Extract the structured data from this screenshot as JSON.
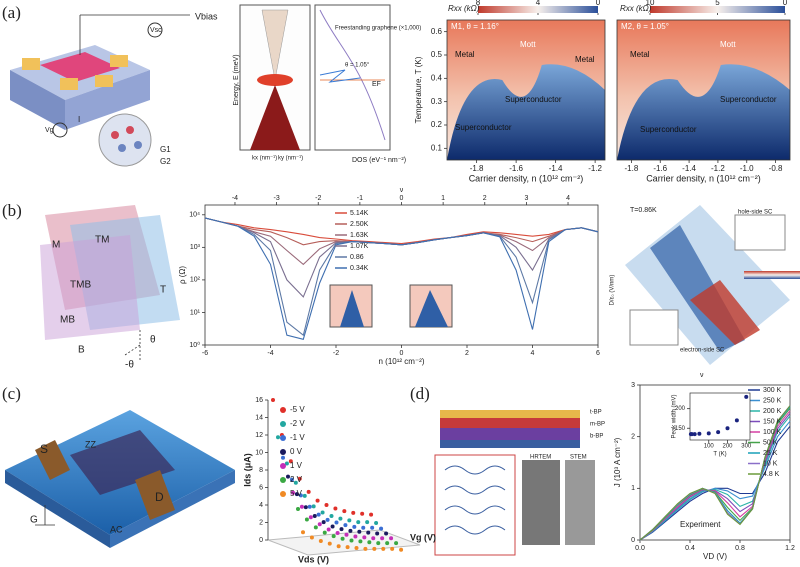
{
  "panels": [
    {
      "label": "(a)",
      "texts": [
        "Vbias",
        "Vsc",
        "Vg",
        "I",
        "G1",
        "G2",
        "Energy, E (meV)",
        "kx (nm⁻¹)",
        "ky (nm⁻¹)",
        "DOS (eV⁻¹ nm⁻²)",
        "Freestanding graphene (×1,000)",
        "θ = 1.05°",
        "EF"
      ]
    },
    {
      "label": "(b)",
      "texts": [
        "M",
        "TM",
        "TMB",
        "T",
        "MB",
        "B",
        "θ",
        "-θ",
        "T=0.86K",
        "hole-side SC",
        "electron-side SC",
        "D/ε₀ (V/nm)",
        "ν"
      ]
    },
    {
      "label": "(c)",
      "texts": [
        "S",
        "D",
        "G",
        "ZZ",
        "AC"
      ]
    },
    {
      "label": "(d)",
      "texts": [
        "t-BP",
        "m-BP",
        "b-BP",
        "HRTEM",
        "STEM"
      ]
    }
  ],
  "chart_data": [
    {
      "type": "heatmap",
      "title": "M1, θ = 1.16°",
      "colorbar_label": "Rxx (kΩ)",
      "clim": [
        8,
        0
      ],
      "colorbar_ticks": [
        8,
        4,
        0
      ],
      "xlabel": "Carrier density, n (10¹² cm⁻²)",
      "ylabel": "Temperature, T (K)",
      "xlim": [
        -1.95,
        -1.15
      ],
      "xticks": [
        -1.8,
        -1.6,
        -1.4,
        -1.2
      ],
      "ylim": [
        0.05,
        0.65
      ],
      "yticks": [
        0.1,
        0.2,
        0.3,
        0.4,
        0.5,
        0.6
      ],
      "annotations": [
        "Metal",
        "Mott",
        "Metal",
        "Superconductor",
        "Superconductor"
      ]
    },
    {
      "type": "heatmap",
      "title": "M2, θ = 1.05°",
      "colorbar_label": "Rxx (kΩ)",
      "clim": [
        10,
        0
      ],
      "colorbar_ticks": [
        10,
        5,
        0
      ],
      "xlabel": "Carrier density, n (10¹² cm⁻²)",
      "xlim": [
        -1.9,
        -0.7
      ],
      "xticks": [
        -1.8,
        -1.6,
        -1.4,
        -1.2,
        {
          "value": -1,
          "label": "-1.0"
        },
        -0.8
      ],
      "ylim": [
        0.05,
        0.65
      ],
      "annotations": [
        "Metal",
        "Mott",
        "Superconductor",
        "Superconductor"
      ]
    },
    {
      "type": "line",
      "xlabel": "n (10¹² cm⁻²)",
      "x2label": "ν",
      "ylabel": "ρ (Ω)",
      "log_y": true,
      "xlim": [
        -6,
        6
      ],
      "xticks": [
        -6,
        -4,
        -2,
        0,
        2,
        4,
        6
      ],
      "x2lim": [
        -4.72,
        4.72
      ],
      "x2ticks": [
        -4,
        -3,
        -2,
        -1,
        0,
        1,
        2,
        3,
        4
      ],
      "ylim": [
        1,
        20000
      ],
      "yticks": [
        {
          "value": 1,
          "label": "10⁰"
        },
        {
          "value": 10,
          "label": "10¹"
        },
        {
          "value": 100,
          "label": "10²"
        },
        {
          "value": 1000,
          "label": "10³"
        },
        {
          "value": 10000,
          "label": "10⁴"
        }
      ],
      "x": [
        -6,
        -5.5,
        -5,
        -4.5,
        -4,
        -3.5,
        -3,
        -2.5,
        -2,
        -1.5,
        -1,
        -0.5,
        0,
        0.5,
        1,
        1.5,
        2,
        2.5,
        3,
        3.5,
        4,
        4.5,
        5,
        5.5,
        6
      ],
      "series": [
        {
          "name": "5.14K",
          "color": "#d94c3b",
          "values": [
            8000,
            6000,
            5000,
            4000,
            3500,
            3000,
            2500,
            2000,
            1800,
            1600,
            1500,
            1400,
            1300,
            1500,
            1800,
            2000,
            2500,
            3000,
            2800,
            2500,
            2200,
            2500,
            3500,
            4000,
            3000
          ]
        },
        {
          "name": "2.50K",
          "color": "#b65f5a",
          "values": [
            8000,
            6000,
            4500,
            3500,
            3000,
            2000,
            1200,
            1500,
            1600,
            1500,
            1400,
            1300,
            1200,
            1400,
            1700,
            2000,
            2300,
            2800,
            2500,
            2000,
            1500,
            2200,
            3500,
            4000,
            3000
          ]
        },
        {
          "name": "1.63K",
          "color": "#9a6a7a",
          "values": [
            8000,
            6000,
            4500,
            3000,
            2200,
            800,
            300,
            900,
            1500,
            1500,
            1400,
            1300,
            1200,
            1400,
            1700,
            2000,
            2300,
            2800,
            2400,
            1500,
            800,
            2000,
            3500,
            4000,
            3000
          ]
        },
        {
          "name": "1.07K",
          "color": "#7a6f90",
          "values": [
            8000,
            6000,
            4500,
            2800,
            1500,
            100,
            30,
            500,
            1400,
            1500,
            1400,
            1300,
            1200,
            1400,
            1700,
            2000,
            2300,
            2800,
            2300,
            1000,
            200,
            1800,
            3500,
            4000,
            3000
          ]
        },
        {
          "name": "0.86",
          "color": "#5d79a5",
          "values": [
            8000,
            6000,
            4500,
            2500,
            800,
            5,
            2,
            200,
            1300,
            1500,
            1400,
            1300,
            1200,
            1400,
            1700,
            2000,
            2300,
            2800,
            2200,
            500,
            20,
            1700,
            3500,
            4000,
            3000
          ]
        },
        {
          "name": "0.34K",
          "color": "#3f6fb0",
          "values": [
            8000,
            6000,
            4500,
            2200,
            300,
            2,
            1.5,
            80,
            1200,
            1500,
            1400,
            1300,
            1200,
            1400,
            1700,
            2000,
            2300,
            2800,
            2100,
            200,
            3,
            1500,
            3500,
            4000,
            3000
          ]
        }
      ]
    },
    {
      "type": "line3d",
      "ylabel": "Ids (μA)",
      "xlabel": "Vds (V)",
      "zlabel": "Vg (V)",
      "ylim": [
        0,
        16
      ],
      "yticks": [
        0,
        2,
        4,
        6,
        8,
        10,
        12,
        14,
        16
      ],
      "xlim": [
        0,
        3
      ],
      "x": [
        0,
        0.25,
        0.5,
        0.75,
        1,
        1.25,
        1.5,
        1.75,
        2,
        2.25,
        2.5,
        2.75
      ],
      "series": [
        {
          "name": "-5 V",
          "color": "#e0302a",
          "values": [
            16,
            12,
            9,
            7,
            5.5,
            4.5,
            4,
            3.6,
            3.3,
            3.1,
            3,
            2.9
          ]
        },
        {
          "name": "-2 V",
          "color": "#22a7a0",
          "values": [
            12,
            9,
            6.8,
            5.3,
            4.1,
            3.4,
            3,
            2.7,
            2.5,
            2.3,
            2.3,
            2.2
          ]
        },
        {
          "name": "-1 V",
          "color": "#3b6fd4",
          "values": [
            9.9,
            7.4,
            5.6,
            4.3,
            3.4,
            2.8,
            2.5,
            2.2,
            2,
            1.9,
            1.9,
            1.8
          ]
        },
        {
          "name": "0 V",
          "color": "#1a1a5e",
          "values": [
            8,
            6,
            4.5,
            3.5,
            2.8,
            2.3,
            2,
            1.8,
            1.7,
            1.6,
            1.5,
            1.5
          ]
        },
        {
          "name": "1 V",
          "color": "#c42fb8",
          "values": [
            6.4,
            4.8,
            3.6,
            2.8,
            2.2,
            1.8,
            1.6,
            1.4,
            1.3,
            1.2,
            1.2,
            1.2
          ]
        },
        {
          "name": "2 V",
          "color": "#3aa843",
          "values": [
            4.8,
            3.6,
            2.7,
            2.1,
            1.7,
            1.4,
            1.2,
            1.1,
            1,
            0.9,
            0.9,
            0.9
          ]
        },
        {
          "name": "5 V",
          "color": "#f08a24",
          "values": [
            2.4,
            1.8,
            1.4,
            1.1,
            0.8,
            0.7,
            0.6,
            0.5,
            0.5,
            0.5,
            0.5,
            0.4
          ]
        }
      ]
    },
    {
      "type": "line",
      "xlabel": "VD (V)",
      "ylabel": "J (10³ A cm⁻²)",
      "annotations": [
        "Experiment"
      ],
      "xlim": [
        0,
        1.2
      ],
      "xticks": [
        {
          "value": 0,
          "label": "0.0"
        },
        0.4,
        0.8,
        1.2
      ],
      "ylim": [
        0,
        3
      ],
      "yticks": [
        0,
        1,
        2,
        3
      ],
      "x": [
        0,
        0.1,
        0.2,
        0.3,
        0.4,
        0.5,
        0.6,
        0.7,
        0.8,
        0.9,
        1,
        1.1,
        1.2
      ],
      "series": [
        {
          "name": "300 K",
          "color": "#1f3a93",
          "values": [
            0,
            0.15,
            0.35,
            0.55,
            0.75,
            0.9,
            1.0,
            1.0,
            0.9,
            0.9,
            1.3,
            1.9,
            2.2
          ]
        },
        {
          "name": "250 K",
          "color": "#3b8fd0",
          "values": [
            0,
            0.16,
            0.37,
            0.58,
            0.78,
            0.93,
            1.0,
            0.95,
            0.8,
            0.85,
            1.4,
            2.0,
            2.3
          ]
        },
        {
          "name": "200 K",
          "color": "#2bb5a8",
          "values": [
            0,
            0.17,
            0.38,
            0.6,
            0.8,
            0.95,
            0.98,
            0.88,
            0.65,
            0.75,
            1.45,
            2.1,
            2.4
          ]
        },
        {
          "name": "150 K",
          "color": "#7c4dbb",
          "values": [
            0,
            0.18,
            0.4,
            0.62,
            0.83,
            0.97,
            0.96,
            0.8,
            0.55,
            0.7,
            1.5,
            2.15,
            2.45
          ]
        },
        {
          "name": "100 K",
          "color": "#d63fa3",
          "values": [
            0,
            0.18,
            0.41,
            0.64,
            0.85,
            0.98,
            0.95,
            0.72,
            0.45,
            0.65,
            1.55,
            2.2,
            2.5
          ]
        },
        {
          "name": "50 K",
          "color": "#45a34a",
          "values": [
            0,
            0.19,
            0.43,
            0.67,
            0.87,
            0.99,
            0.93,
            0.63,
            0.38,
            0.62,
            1.58,
            2.25,
            2.55
          ]
        },
        {
          "name": "25 K",
          "color": "#19a0b8",
          "values": [
            0,
            0.2,
            0.44,
            0.68,
            0.88,
            1.0,
            0.92,
            0.57,
            0.33,
            0.6,
            1.6,
            2.28,
            2.58
          ]
        },
        {
          "name": "10 K",
          "color": "#8a6fc8",
          "values": [
            0,
            0.2,
            0.45,
            0.69,
            0.89,
            1.0,
            0.91,
            0.53,
            0.31,
            0.6,
            1.6,
            2.3,
            2.6
          ]
        },
        {
          "name": "4.8 K",
          "color": "#6a9a3a",
          "values": [
            0,
            0.2,
            0.45,
            0.7,
            0.9,
            1.0,
            0.9,
            0.5,
            0.3,
            0.6,
            1.6,
            2.3,
            2.6
          ]
        }
      ]
    },
    {
      "type": "scatter",
      "xlabel": "T (K)",
      "ylabel": "Peak width (mV)",
      "color": "#1a237e",
      "xlim": [
        0,
        320
      ],
      "xticks": [
        100,
        200,
        300
      ],
      "ylim": [
        120,
        240
      ],
      "yticks": [
        150,
        200
      ],
      "x": [
        4.8,
        10,
        25,
        50,
        100,
        150,
        200,
        250,
        300
      ],
      "values": [
        135,
        135,
        135,
        136,
        137,
        140,
        150,
        170,
        230
      ]
    }
  ]
}
